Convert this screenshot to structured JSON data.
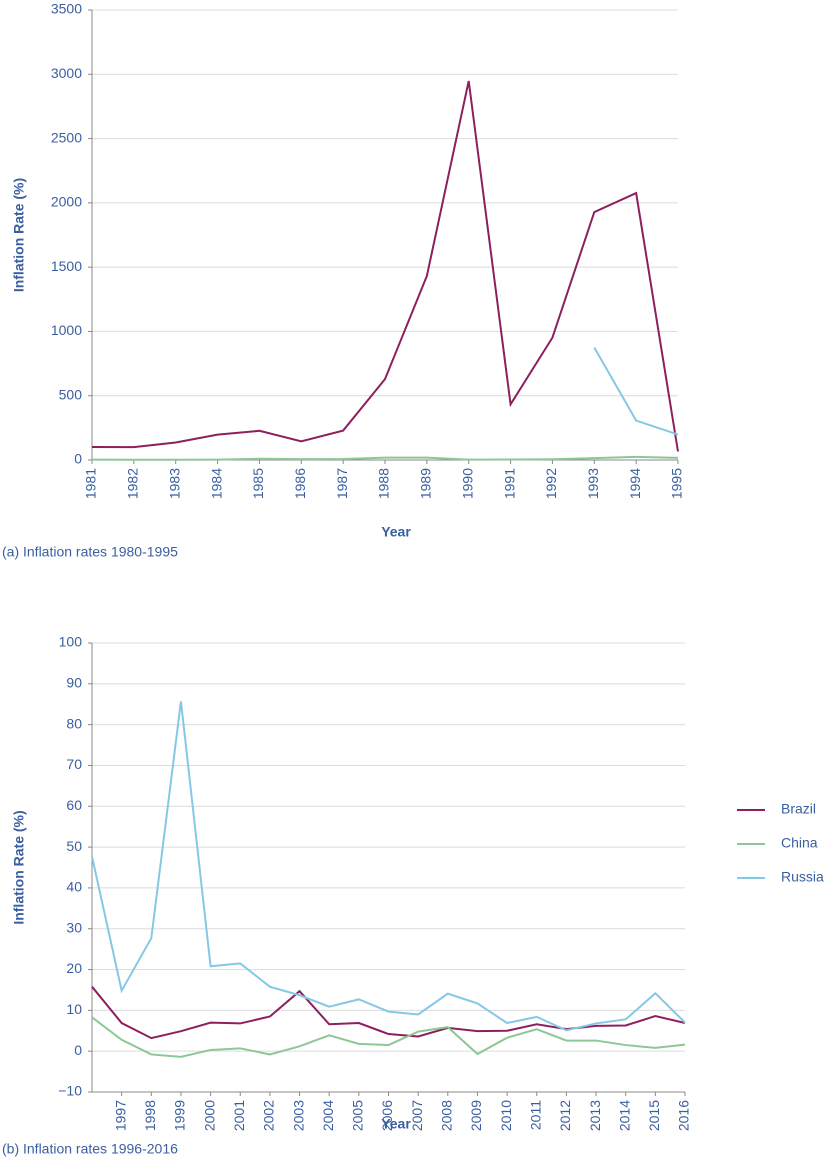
{
  "chart_data": [
    {
      "type": "line",
      "caption": "(a) Inflation rates 1980-1995",
      "xlabel": "Year",
      "ylabel": "Inflation Rate (%)",
      "x": [
        1981,
        1982,
        1983,
        1984,
        1985,
        1986,
        1987,
        1988,
        1989,
        1990,
        1991,
        1992,
        1993,
        1994,
        1995
      ],
      "xlim": [
        1981,
        1995
      ],
      "xticks": [
        1981,
        1982,
        1983,
        1984,
        1985,
        1986,
        1987,
        1988,
        1989,
        1990,
        1991,
        1992,
        1993,
        1994,
        1995
      ],
      "ylim": [
        0,
        3500
      ],
      "yticks": [
        0,
        500,
        1000,
        1500,
        2000,
        2500,
        3000,
        3500
      ],
      "grid": true,
      "series": [
        {
          "name": "Brazil",
          "color": "#8e1f5e",
          "values": [
            101,
            100,
            136,
            197,
            227,
            145,
            229,
            629,
            1431,
            2948,
            433,
            952,
            1928,
            2076,
            66
          ]
        },
        {
          "name": "China",
          "color": "#8cc894",
          "values": [
            2.5,
            2,
            2,
            2.7,
            9.3,
            6.5,
            7.3,
            18.8,
            18,
            3.1,
            3.5,
            6.3,
            14.6,
            24.2,
            16.9
          ]
        },
        {
          "name": "Russia",
          "color": "#85c8e6",
          "values": [
            null,
            null,
            null,
            null,
            null,
            null,
            null,
            null,
            null,
            null,
            null,
            null,
            875,
            307,
            198
          ]
        }
      ]
    },
    {
      "type": "line",
      "caption": "(b) Inflation rates 1996-2016",
      "xlabel": "Year",
      "ylabel": "Inflation Rate (%)",
      "x": [
        1996,
        1997,
        1998,
        1999,
        2000,
        2001,
        2002,
        2003,
        2004,
        2005,
        2006,
        2007,
        2008,
        2009,
        2010,
        2011,
        2012,
        2013,
        2014,
        2015,
        2016
      ],
      "xlim": [
        1996,
        2016
      ],
      "xticks": [
        1997,
        1998,
        1999,
        2000,
        2001,
        2002,
        2003,
        2004,
        2005,
        2006,
        2007,
        2008,
        2009,
        2010,
        2011,
        2012,
        2013,
        2014,
        2015,
        2016
      ],
      "ylim": [
        -10,
        100
      ],
      "yticks": [
        {
          "value": -10,
          "label": "−10"
        },
        0,
        10,
        20,
        30,
        40,
        50,
        60,
        70,
        80,
        90,
        100
      ],
      "grid": true,
      "legend": "right",
      "series": [
        {
          "name": "Brazil",
          "color": "#8e1f5e",
          "values": [
            15.8,
            6.9,
            3.2,
            4.9,
            7.0,
            6.8,
            8.5,
            14.7,
            6.6,
            6.9,
            4.2,
            3.6,
            5.7,
            4.9,
            5.0,
            6.6,
            5.4,
            6.2,
            6.3,
            8.6,
            6.9
          ]
        },
        {
          "name": "China",
          "color": "#8cc894",
          "values": [
            8.3,
            2.8,
            -0.8,
            -1.4,
            0.3,
            0.7,
            -0.8,
            1.2,
            3.9,
            1.8,
            1.5,
            4.8,
            5.9,
            -0.7,
            3.3,
            5.4,
            2.6,
            2.6,
            1.5,
            0.8,
            1.6
          ]
        },
        {
          "name": "Russia",
          "color": "#85c8e6",
          "values": [
            47.7,
            14.8,
            27.7,
            85.7,
            20.8,
            21.5,
            15.8,
            13.7,
            10.9,
            12.7,
            9.7,
            9.0,
            14.1,
            11.7,
            6.9,
            8.4,
            5.1,
            6.8,
            7.8,
            14.2,
            7.0
          ]
        }
      ]
    }
  ]
}
